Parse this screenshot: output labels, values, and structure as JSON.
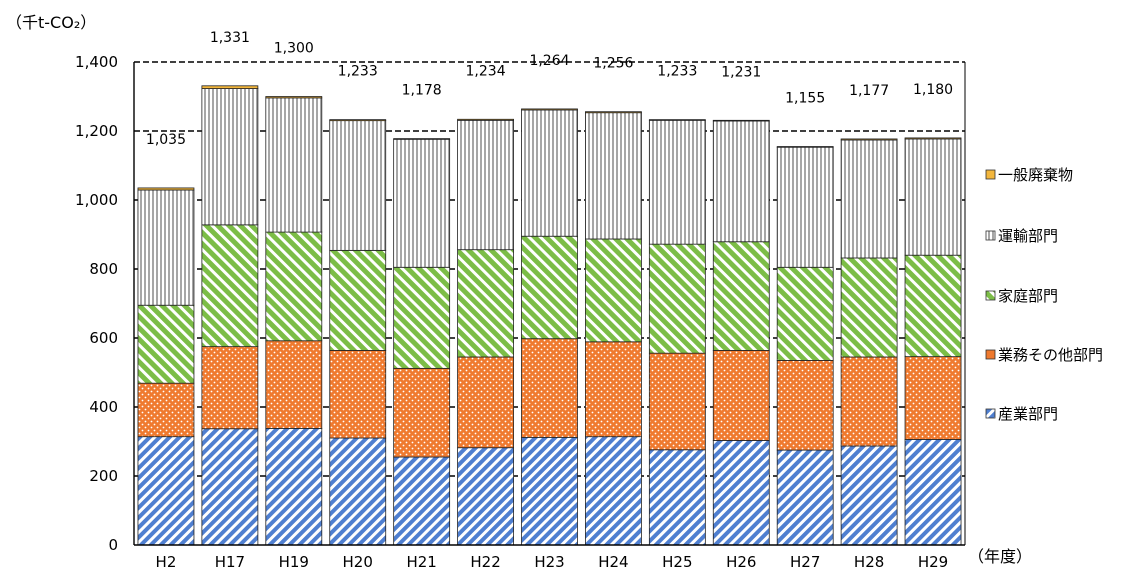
{
  "chart_data": {
    "type": "bar",
    "stacked": true,
    "ylabel": "（千t-CO₂）",
    "xlabel": "（年度）",
    "ylim": [
      0,
      1400
    ],
    "ytick_step": 200,
    "yticks": [
      "0",
      "200",
      "400",
      "600",
      "800",
      "1,000",
      "1,200",
      "1,400"
    ],
    "grid": "horizontal dashed",
    "legend_position": "right",
    "categories": [
      "H2",
      "H17",
      "H19",
      "H20",
      "H21",
      "H22",
      "H23",
      "H24",
      "H25",
      "H26",
      "H27",
      "H28",
      "H29"
    ],
    "series": [
      {
        "name": "産業部門",
        "color": "#4f7fd0",
        "pattern": "diagonal-stripes",
        "values": [
          314,
          337,
          338,
          310,
          255,
          282,
          312,
          314,
          276,
          303,
          275,
          287,
          306
        ]
      },
      {
        "name": "業務その他部門",
        "color": "#ef7a2f",
        "pattern": "dots",
        "values": [
          155,
          238,
          254,
          254,
          257,
          263,
          286,
          275,
          280,
          261,
          260,
          258,
          240
        ]
      },
      {
        "name": "家庭部門",
        "color": "#7cbd47",
        "pattern": "diagonal-stripes",
        "values": [
          226,
          353,
          315,
          290,
          293,
          311,
          297,
          298,
          316,
          315,
          270,
          287,
          294
        ]
      },
      {
        "name": "運輸部門",
        "color": "#b8b8b8",
        "pattern": "vertical-stripes",
        "values": [
          334,
          395,
          389,
          376,
          371,
          375,
          366,
          366,
          359,
          350,
          348,
          342,
          337
        ]
      },
      {
        "name": "一般廃棄物",
        "color": "#f2b63d",
        "pattern": "solid",
        "values": [
          6,
          8,
          4,
          3,
          2,
          3,
          3,
          3,
          2,
          2,
          2,
          3,
          3
        ]
      }
    ],
    "totals": [
      1035,
      1331,
      1300,
      1233,
      1178,
      1234,
      1264,
      1256,
      1233,
      1231,
      1155,
      1177,
      1180
    ],
    "total_labels": [
      "1,035",
      "1,331",
      "1,300",
      "1,233",
      "1,178",
      "1,234",
      "1,264",
      "1,256",
      "1,233",
      "1,231",
      "1,155",
      "1,177",
      "1,180"
    ],
    "legend": [
      "一般廃棄物",
      "運輸部門",
      "家庭部門",
      "業務その他部門",
      "産業部門"
    ]
  }
}
